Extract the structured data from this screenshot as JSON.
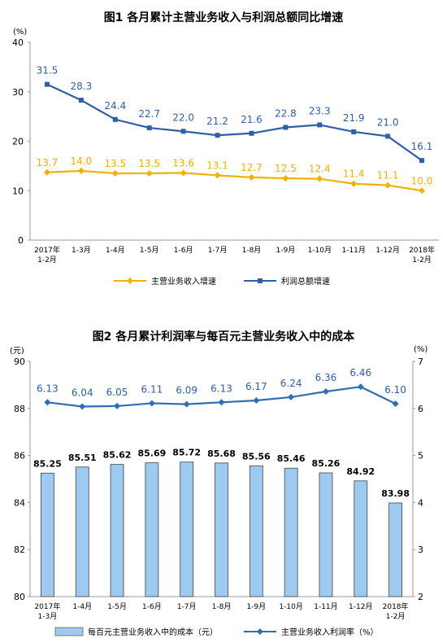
{
  "chart_data": [
    {
      "type": "line",
      "title": "图1  各月累计主营业务收入与利润总额同比增速",
      "unit": "(%)",
      "categories": [
        [
          "2017年",
          "1-2月"
        ],
        [
          "1-3月"
        ],
        [
          "1-4月"
        ],
        [
          "1-5月"
        ],
        [
          "1-6月"
        ],
        [
          "1-7月"
        ],
        [
          "1-8月"
        ],
        [
          "1-9月"
        ],
        [
          "1-10月"
        ],
        [
          "1-11月"
        ],
        [
          "1-12月"
        ],
        [
          "2018年",
          "1-2月"
        ]
      ],
      "ylim": [
        0,
        40
      ],
      "yticks": [
        "0",
        "10",
        "20",
        "30",
        "40"
      ],
      "grid": false,
      "legend": "bottom",
      "series": [
        {
          "name": "主营业务收入增速",
          "color": "#f2b000",
          "values": [
            13.7,
            14.0,
            13.5,
            13.5,
            13.6,
            13.1,
            12.7,
            12.5,
            12.4,
            11.4,
            11.1,
            10.0
          ],
          "labels": [
            "13.7",
            "14.0",
            "13.5",
            "13.5",
            "13.6",
            "13.1",
            "12.7",
            "12.5",
            "12.4",
            "11.4",
            "11.1",
            "10.0"
          ]
        },
        {
          "name": "利润总额增速",
          "color": "#2f5fa8",
          "values": [
            31.5,
            28.3,
            24.4,
            22.7,
            22.0,
            21.2,
            21.6,
            22.8,
            23.3,
            21.9,
            21.0,
            16.1
          ],
          "labels": [
            "31.5",
            "28.3",
            "24.4",
            "22.7",
            "22.0",
            "21.2",
            "21.6",
            "22.8",
            "23.3",
            "21.9",
            "21.0",
            "16.1"
          ]
        }
      ]
    },
    {
      "type": "bar",
      "title": "图2  各月累计利润率与每百元主营业务收入中的成本",
      "left_unit": "(元)",
      "right_unit": "(%)",
      "categories": [
        [
          "2017年",
          "1-3月"
        ],
        [
          "1-4月"
        ],
        [
          "1-5月"
        ],
        [
          "1-6月"
        ],
        [
          "1-7月"
        ],
        [
          "1-8月"
        ],
        [
          "1-9月"
        ],
        [
          "1-10月"
        ],
        [
          "1-11月"
        ],
        [
          "1-12月"
        ],
        [
          "2018年",
          "1-2月"
        ]
      ],
      "ylim": [
        80,
        90
      ],
      "yticks": [
        "80",
        "82",
        "84",
        "86",
        "88",
        "90"
      ],
      "y2lim": [
        2,
        7
      ],
      "y2ticks": [
        "2",
        "3",
        "4",
        "5",
        "6",
        "7"
      ],
      "grid": false,
      "legend": "bottom",
      "series": [
        {
          "name": "每百元主营业务收入中的成本（元）",
          "color": "#9fcaf0",
          "axis": "left",
          "values": [
            85.25,
            85.51,
            85.62,
            85.69,
            85.72,
            85.68,
            85.56,
            85.46,
            85.26,
            84.92,
            83.98
          ],
          "labels": [
            "85.25",
            "85.51",
            "85.62",
            "85.69",
            "85.72",
            "85.68",
            "85.56",
            "85.46",
            "85.26",
            "84.92",
            "83.98"
          ]
        },
        {
          "name": "主营业务收入利润率（%）",
          "color": "#2f6db5",
          "axis": "right",
          "values": [
            6.13,
            6.04,
            6.05,
            6.11,
            6.09,
            6.13,
            6.17,
            6.24,
            6.36,
            6.46,
            6.1
          ],
          "labels": [
            "6.13",
            "6.04",
            "6.05",
            "6.11",
            "6.09",
            "6.13",
            "6.17",
            "6.24",
            "6.36",
            "6.46",
            "6.10"
          ]
        }
      ]
    }
  ]
}
